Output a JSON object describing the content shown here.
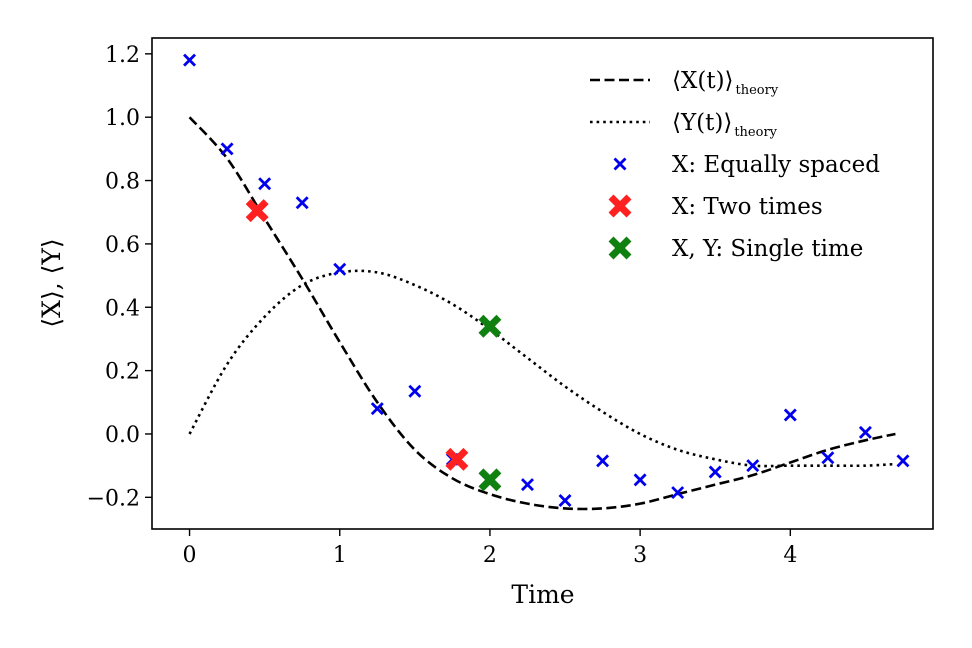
{
  "chart_data": {
    "type": "line",
    "title": "",
    "xlabel": "Time",
    "ylabel": "⟨X⟩, ⟨Y⟩",
    "xlim": [
      -0.25,
      4.95
    ],
    "ylim": [
      -0.3,
      1.25
    ],
    "xticks": [
      0,
      1,
      2,
      3,
      4
    ],
    "xtick_labels": [
      "0",
      "1",
      "2",
      "3",
      "4"
    ],
    "yticks": [
      -0.2,
      0.0,
      0.2,
      0.4,
      0.6,
      0.8,
      1.0,
      1.2
    ],
    "ytick_labels": [
      "−0.2",
      "0.0",
      "0.2",
      "0.4",
      "0.6",
      "0.8",
      "1.0",
      "1.2"
    ],
    "legend_position": "top-right",
    "series": [
      {
        "name": "⟨X(t)⟩theory",
        "legend_main": "⟨X(t)⟩",
        "legend_sub": "theory",
        "kind": "line",
        "style": "dashed",
        "color": "#000000",
        "x": [
          0,
          0.25,
          0.5,
          0.75,
          1.0,
          1.25,
          1.5,
          1.75,
          2.0,
          2.25,
          2.5,
          2.75,
          3.0,
          3.25,
          3.5,
          3.75,
          4.0,
          4.25,
          4.5,
          4.7
        ],
        "y": [
          1.0,
          0.87,
          0.68,
          0.49,
          0.29,
          0.1,
          -0.05,
          -0.14,
          -0.19,
          -0.22,
          -0.235,
          -0.235,
          -0.22,
          -0.19,
          -0.16,
          -0.13,
          -0.09,
          -0.05,
          -0.02,
          0.0
        ]
      },
      {
        "name": "⟨Y(t)⟩theory",
        "legend_main": "⟨Y(t)⟩",
        "legend_sub": "theory",
        "kind": "line",
        "style": "dotted",
        "color": "#000000",
        "x": [
          0,
          0.25,
          0.5,
          0.75,
          1.0,
          1.25,
          1.5,
          1.75,
          2.0,
          2.25,
          2.5,
          2.75,
          3.0,
          3.25,
          3.5,
          3.75,
          4.0,
          4.25,
          4.5,
          4.7
        ],
        "y": [
          0.0,
          0.22,
          0.37,
          0.47,
          0.51,
          0.51,
          0.47,
          0.41,
          0.33,
          0.24,
          0.15,
          0.07,
          0.0,
          -0.05,
          -0.08,
          -0.1,
          -0.1,
          -0.1,
          -0.1,
          -0.095
        ]
      },
      {
        "name": "X: Equally spaced",
        "kind": "scatter",
        "marker": "x-small",
        "color": "#0000ee",
        "x": [
          0,
          0.25,
          0.5,
          0.75,
          1.0,
          1.25,
          1.5,
          1.75,
          2.0,
          2.25,
          2.5,
          2.75,
          3.0,
          3.25,
          3.5,
          3.75,
          4.0,
          4.25,
          4.5,
          4.75
        ],
        "y": [
          1.18,
          0.9,
          0.79,
          0.73,
          0.52,
          0.08,
          0.135,
          -0.08,
          -0.14,
          -0.16,
          -0.21,
          -0.085,
          -0.145,
          -0.185,
          -0.12,
          -0.1,
          0.06,
          -0.075,
          0.005,
          -0.085
        ]
      },
      {
        "name": "X: Two times",
        "kind": "scatter",
        "marker": "x-big",
        "color": "#ff2020",
        "x": [
          0.45,
          1.78
        ],
        "y": [
          0.705,
          -0.08
        ]
      },
      {
        "name": "X, Y: Single time",
        "kind": "scatter",
        "marker": "x-big",
        "color": "#108010",
        "x": [
          2.0,
          2.0
        ],
        "y": [
          0.34,
          -0.145
        ]
      }
    ]
  }
}
